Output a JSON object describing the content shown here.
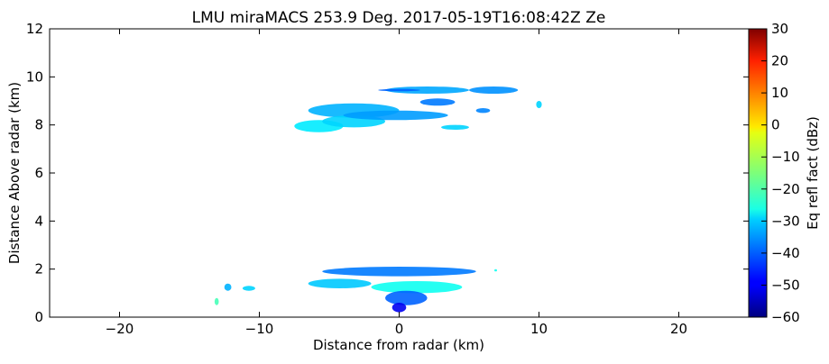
{
  "chart_data": {
    "type": "heatmap",
    "title": "LMU miraMACS 253.9 Deg. 2017-05-19T16:08:42Z  Ze",
    "xlabel": "Distance from radar (km)",
    "ylabel": "Distance Above radar  (km)",
    "xlim": [
      -25,
      25
    ],
    "ylim": [
      0,
      12
    ],
    "x_ticks": [
      -20,
      -10,
      0,
      10,
      20
    ],
    "x_tick_labels": [
      "−20",
      "−10",
      "0",
      "10",
      "20"
    ],
    "y_ticks": [
      0,
      2,
      4,
      6,
      8,
      10,
      12
    ],
    "y_tick_labels": [
      "0",
      "2",
      "4",
      "6",
      "8",
      "10",
      "12"
    ],
    "grid": false,
    "colorbar": {
      "label": "Eq refl fact (dBz)",
      "range": [
        -60,
        30
      ],
      "ticks": [
        -60,
        -50,
        -40,
        -30,
        -20,
        -10,
        0,
        10,
        20,
        30
      ],
      "tick_labels": [
        "−60",
        "−50",
        "−40",
        "−30",
        "−20",
        "−10",
        "0",
        "10",
        "20",
        "30"
      ],
      "colormap": "jet"
    },
    "echo_regions": [
      {
        "x": [
          -6.5,
          0
        ],
        "y": [
          8.3,
          8.9
        ],
        "value": -33
      },
      {
        "x": [
          -7.5,
          -4
        ],
        "y": [
          7.7,
          8.2
        ],
        "value": -28
      },
      {
        "x": [
          -5.5,
          -1
        ],
        "y": [
          7.9,
          8.4
        ],
        "value": -30
      },
      {
        "x": [
          -4,
          3.5
        ],
        "y": [
          8.2,
          8.6
        ],
        "value": -35
      },
      {
        "x": [
          -1,
          5
        ],
        "y": [
          9.3,
          9.6
        ],
        "value": -34
      },
      {
        "x": [
          5,
          8.5
        ],
        "y": [
          9.3,
          9.6
        ],
        "value": -36
      },
      {
        "x": [
          1.5,
          4
        ],
        "y": [
          8.8,
          9.1
        ],
        "value": -38
      },
      {
        "x": [
          -1.5,
          1.5
        ],
        "y": [
          9.4,
          9.5
        ],
        "value": -40
      },
      {
        "x": [
          3,
          5
        ],
        "y": [
          7.8,
          8.0
        ],
        "value": -30
      },
      {
        "x": [
          5.5,
          6.5
        ],
        "y": [
          8.5,
          8.7
        ],
        "value": -37
      },
      {
        "x": [
          9.8,
          10.2
        ],
        "y": [
          8.7,
          9.0
        ],
        "value": -30
      },
      {
        "x": [
          -5.5,
          5.5
        ],
        "y": [
          1.7,
          2.1
        ],
        "value": -38
      },
      {
        "x": [
          -6.5,
          -2
        ],
        "y": [
          1.2,
          1.6
        ],
        "value": -31
      },
      {
        "x": [
          -2,
          4.5
        ],
        "y": [
          1.0,
          1.5
        ],
        "value": -25
      },
      {
        "x": [
          -1,
          2
        ],
        "y": [
          0.5,
          1.1
        ],
        "value": -40
      },
      {
        "x": [
          -0.5,
          0.5
        ],
        "y": [
          0.2,
          0.6
        ],
        "value": -50
      },
      {
        "x": [
          -12.5,
          -12
        ],
        "y": [
          1.1,
          1.4
        ],
        "value": -33
      },
      {
        "x": [
          -11.2,
          -10.3
        ],
        "y": [
          1.1,
          1.3
        ],
        "value": -30
      },
      {
        "x": [
          -13.2,
          -12.9
        ],
        "y": [
          0.5,
          0.8
        ],
        "value": -20
      },
      {
        "x": [
          6.8,
          7.0
        ],
        "y": [
          1.9,
          2.0
        ],
        "value": -25
      }
    ]
  }
}
